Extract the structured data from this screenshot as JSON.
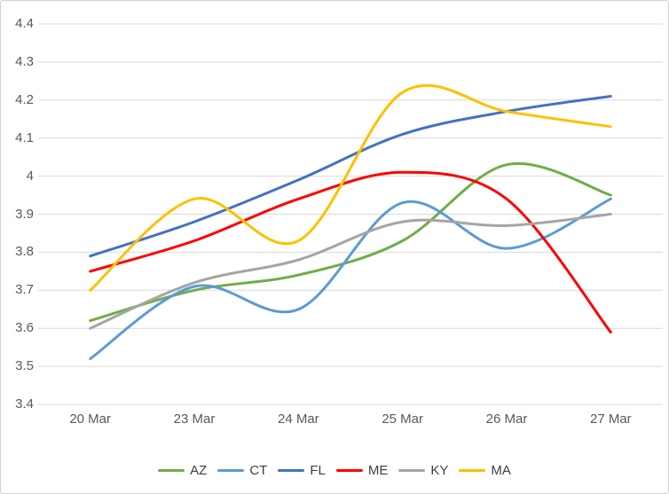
{
  "chart_data": {
    "type": "line",
    "smooth": true,
    "title": "",
    "xlabel": "",
    "ylabel": "",
    "categories": [
      "20 Mar",
      "23 Mar",
      "24 Mar",
      "25 Mar",
      "26 Mar",
      "27 Mar"
    ],
    "series": [
      {
        "name": "AZ",
        "color": "#70AD47",
        "values": [
          3.62,
          3.7,
          3.74,
          3.83,
          4.03,
          3.95
        ]
      },
      {
        "name": "CT",
        "color": "#5B9BD5",
        "values": [
          3.52,
          3.71,
          3.65,
          3.93,
          3.81,
          3.94
        ]
      },
      {
        "name": "FL",
        "color": "#4472C4",
        "values": [
          3.79,
          3.88,
          3.99,
          4.11,
          4.17,
          4.21
        ]
      },
      {
        "name": "ME",
        "color": "#FF0000",
        "values": [
          3.75,
          3.83,
          3.94,
          4.01,
          3.94,
          3.59
        ]
      },
      {
        "name": "KY",
        "color": "#A5A5A5",
        "values": [
          3.6,
          3.72,
          3.78,
          3.88,
          3.87,
          3.9
        ]
      },
      {
        "name": "MA",
        "color": "#FFC000",
        "values": [
          3.7,
          3.94,
          3.83,
          4.22,
          4.17,
          4.13
        ]
      }
    ],
    "ylim": [
      3.4,
      4.4
    ],
    "y_tick_labels": [
      "4.4",
      "4.3",
      "4.2",
      "4.1",
      "4",
      "3.9",
      "3.8",
      "3.7",
      "3.6",
      "3.5",
      "3.4"
    ],
    "grid": "horizontal",
    "legend_position": "bottom"
  },
  "colors": {
    "background": "#FFFFFF",
    "border": "#D2D2D2",
    "gridline": "#D9D9D9",
    "axis_label": "#595959",
    "legend_label": "#404040"
  }
}
